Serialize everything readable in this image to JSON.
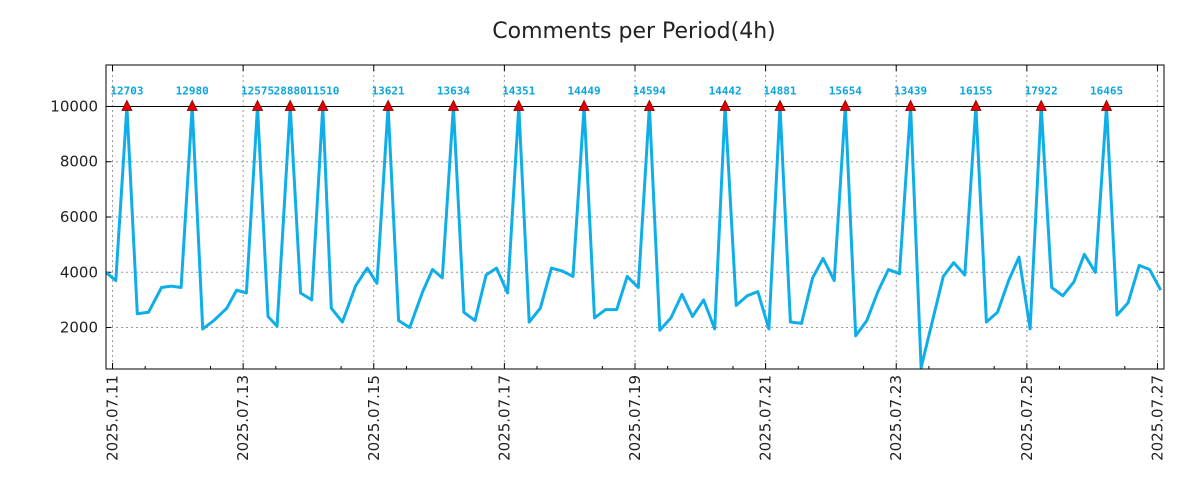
{
  "chart_data": {
    "type": "line",
    "title": "Comments per Period(4h)",
    "xlabel": "",
    "ylabel": "",
    "grid": true,
    "line_color": "#10aee8",
    "marker_color": "#e00000",
    "label_color": "#0aa6e0",
    "clip_line_value": 10000,
    "ylim": [
      500,
      11500
    ],
    "y_ticks": [
      2000,
      4000,
      6000,
      8000,
      10000
    ],
    "x_range_days": [
      -0.1,
      16.1
    ],
    "x_ticks": [
      {
        "day": 0,
        "label": "2025.07.11"
      },
      {
        "day": 2,
        "label": "2025.07.13"
      },
      {
        "day": 4,
        "label": "2025.07.15"
      },
      {
        "day": 6,
        "label": "2025.07.17"
      },
      {
        "day": 8,
        "label": "2025.07.19"
      },
      {
        "day": 10,
        "label": "2025.07.21"
      },
      {
        "day": 12,
        "label": "2025.07.23"
      },
      {
        "day": 14,
        "label": "2025.07.25"
      },
      {
        "day": 16,
        "label": "2025.07.27"
      }
    ],
    "series": [
      {
        "name": "Comments",
        "points": [
          [
            -0.1,
            4000
          ],
          [
            0.05,
            3700
          ],
          [
            0.22,
            10000
          ],
          [
            0.38,
            2500
          ],
          [
            0.55,
            2550
          ],
          [
            0.75,
            3450
          ],
          [
            0.9,
            3500
          ],
          [
            1.05,
            3450
          ],
          [
            1.22,
            10000
          ],
          [
            1.38,
            1950
          ],
          [
            1.55,
            2250
          ],
          [
            1.75,
            2700
          ],
          [
            1.9,
            3350
          ],
          [
            2.05,
            3250
          ],
          [
            2.22,
            10000
          ],
          [
            2.38,
            2400
          ],
          [
            2.52,
            2050
          ],
          [
            2.72,
            10000
          ],
          [
            2.88,
            3250
          ],
          [
            3.05,
            3000
          ],
          [
            3.22,
            10000
          ],
          [
            3.35,
            2700
          ],
          [
            3.52,
            2200
          ],
          [
            3.72,
            3500
          ],
          [
            3.9,
            4150
          ],
          [
            4.05,
            3600
          ],
          [
            4.22,
            10000
          ],
          [
            4.38,
            2250
          ],
          [
            4.55,
            2000
          ],
          [
            4.75,
            3300
          ],
          [
            4.9,
            4100
          ],
          [
            5.05,
            3800
          ],
          [
            5.22,
            10000
          ],
          [
            5.38,
            2550
          ],
          [
            5.55,
            2250
          ],
          [
            5.72,
            3900
          ],
          [
            5.88,
            4150
          ],
          [
            6.05,
            3250
          ],
          [
            6.22,
            10000
          ],
          [
            6.38,
            2200
          ],
          [
            6.55,
            2700
          ],
          [
            6.72,
            4150
          ],
          [
            6.88,
            4050
          ],
          [
            7.05,
            3850
          ],
          [
            7.22,
            10000
          ],
          [
            7.38,
            2350
          ],
          [
            7.55,
            2650
          ],
          [
            7.72,
            2650
          ],
          [
            7.88,
            3850
          ],
          [
            8.05,
            3450
          ],
          [
            8.22,
            10000
          ],
          [
            8.38,
            1900
          ],
          [
            8.55,
            2350
          ],
          [
            8.72,
            3200
          ],
          [
            8.88,
            2400
          ],
          [
            9.05,
            3000
          ],
          [
            9.22,
            1950
          ],
          [
            9.38,
            10000
          ],
          [
            9.55,
            2800
          ],
          [
            9.72,
            3150
          ],
          [
            9.88,
            3300
          ],
          [
            10.05,
            1950
          ],
          [
            10.22,
            10000
          ],
          [
            10.38,
            2200
          ],
          [
            10.55,
            2150
          ],
          [
            10.72,
            3800
          ],
          [
            10.88,
            4500
          ],
          [
            11.05,
            3700
          ],
          [
            11.22,
            10000
          ],
          [
            11.38,
            1700
          ],
          [
            11.55,
            2250
          ],
          [
            11.72,
            3300
          ],
          [
            11.88,
            4100
          ],
          [
            12.05,
            3950
          ],
          [
            12.22,
            10000
          ],
          [
            12.38,
            550
          ],
          [
            12.72,
            3850
          ],
          [
            12.88,
            4350
          ],
          [
            13.05,
            3900
          ],
          [
            13.22,
            10000
          ],
          [
            13.38,
            2200
          ],
          [
            13.55,
            2550
          ],
          [
            13.72,
            3700
          ],
          [
            13.88,
            4550
          ],
          [
            14.05,
            1950
          ],
          [
            14.22,
            10000
          ],
          [
            14.38,
            3450
          ],
          [
            14.55,
            3150
          ],
          [
            14.72,
            3650
          ],
          [
            14.88,
            4650
          ],
          [
            15.05,
            4000
          ],
          [
            15.22,
            10000
          ],
          [
            15.38,
            2450
          ],
          [
            15.55,
            2900
          ],
          [
            15.72,
            4250
          ],
          [
            15.88,
            4100
          ],
          [
            16.05,
            3350
          ]
        ]
      }
    ],
    "peaks": [
      {
        "day": 0.22,
        "value": 12703,
        "label": "12703"
      },
      {
        "day": 1.22,
        "value": 12980,
        "label": "12980"
      },
      {
        "day": 2.22,
        "value": 12575,
        "label": "12575"
      },
      {
        "day": 2.72,
        "value": 28880,
        "label": "28880"
      },
      {
        "day": 3.22,
        "value": 11510,
        "label": "11510"
      },
      {
        "day": 4.22,
        "value": 13621,
        "label": "13621"
      },
      {
        "day": 5.22,
        "value": 13634,
        "label": "13634"
      },
      {
        "day": 6.22,
        "value": 14351,
        "label": "14351"
      },
      {
        "day": 7.22,
        "value": 14449,
        "label": "14449"
      },
      {
        "day": 8.22,
        "value": 14594,
        "label": "14594"
      },
      {
        "day": 9.38,
        "value": 14442,
        "label": "14442"
      },
      {
        "day": 10.22,
        "value": 14881,
        "label": "14881"
      },
      {
        "day": 11.22,
        "value": 15654,
        "label": "15654"
      },
      {
        "day": 12.22,
        "value": 13439,
        "label": "13439"
      },
      {
        "day": 13.22,
        "value": 16155,
        "label": "16155"
      },
      {
        "day": 14.22,
        "value": 17922,
        "label": "17922"
      },
      {
        "day": 15.22,
        "value": 16465,
        "label": "16465"
      }
    ]
  }
}
